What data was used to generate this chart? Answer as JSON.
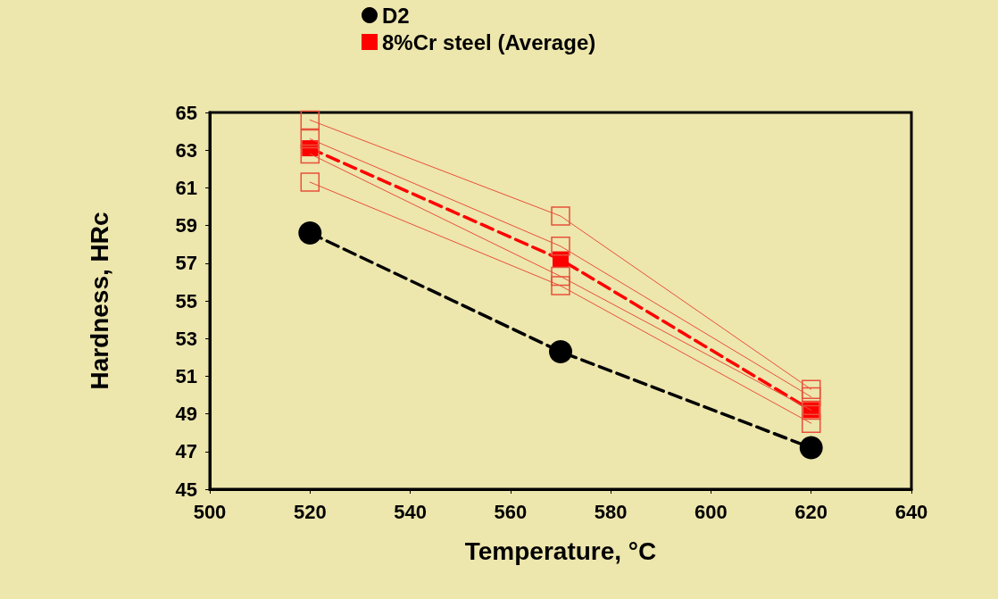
{
  "chart_data": {
    "type": "line",
    "xlabel": "Temperature, °C",
    "ylabel": "Hardness, HRc",
    "x": [
      520,
      570,
      620
    ],
    "xlim": [
      500,
      640
    ],
    "xticks": [
      500,
      520,
      540,
      560,
      580,
      600,
      620,
      640
    ],
    "ylim": [
      45,
      65
    ],
    "yticks": [
      45,
      47,
      49,
      51,
      53,
      55,
      57,
      59,
      61,
      63,
      65
    ],
    "series": [
      {
        "color": "#e8503a",
        "values": [
          64.6,
          59.5,
          50.3
        ],
        "marker": "square",
        "line_style": "solid"
      },
      {
        "color": "#e8503a",
        "values": [
          63.6,
          57.9,
          49.9
        ],
        "marker": "square",
        "line_style": "solid"
      },
      {
        "color": "#e8503a",
        "values": [
          62.8,
          56.3,
          49.2
        ],
        "marker": "square",
        "line_style": "solid"
      },
      {
        "color": "#e8503a",
        "values": [
          61.3,
          55.8,
          48.5
        ],
        "marker": "square",
        "line_style": "solid"
      },
      {
        "name": "D2",
        "color": "#000000",
        "values": [
          58.6,
          52.3,
          47.2
        ],
        "marker": "circle",
        "line_style": "dashed"
      },
      {
        "name": "8%Cr steel (Average)",
        "color": "#ff0000",
        "values": [
          63.1,
          57.2,
          49.2
        ],
        "marker": "square",
        "line_style": "dashed"
      }
    ],
    "legend": "top",
    "grid": false
  }
}
